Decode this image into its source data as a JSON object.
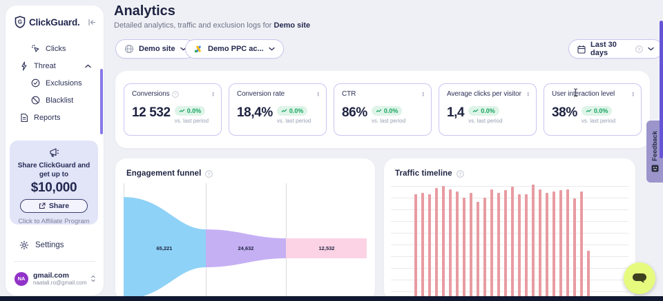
{
  "sidebar": {
    "logo_text": "ClickGuard.",
    "nav": [
      {
        "label": "Clicks"
      },
      {
        "label": "Threat"
      },
      {
        "label": "Exclusions"
      },
      {
        "label": "Blacklist"
      },
      {
        "label": "Reports"
      }
    ],
    "promo": {
      "text": "Share ClickGuard and get up to",
      "amount": "$10,000",
      "share_label": "Share",
      "footer": "Click to Affiliate Program"
    },
    "settings_label": "Settings",
    "account": {
      "initials": "NA",
      "name": "gmail.com",
      "email": "naatali.ro@gmail.com"
    }
  },
  "header": {
    "title": "Analytics",
    "subtitle": "Detailed analytics, traffic and exclusion logs for",
    "subtitle_target": "Demo site"
  },
  "filters": {
    "site": "Demo site",
    "ppc_account": "Demo PPC ac...",
    "date_range": "Last 30 days"
  },
  "kpis": [
    {
      "label": "Conversions",
      "value": "12 532",
      "change": "0.0%",
      "period": "vs. last period"
    },
    {
      "label": "Conversion rate",
      "value": "18,4%",
      "change": "0.0%",
      "period": "vs. last period"
    },
    {
      "label": "CTR",
      "value": "86%",
      "change": "0.0%",
      "period": "vs. last period"
    },
    {
      "label": "Average clicks per visitor",
      "value": "1,4",
      "change": "0.0%",
      "period": "vs. last period"
    },
    {
      "label": "User interaction level",
      "value": "38%",
      "change": "0.0%",
      "period": "vs. last period"
    }
  ],
  "engagement_funnel": {
    "title": "Engagement funnel",
    "chart_data": {
      "type": "funnel",
      "stages": [
        {
          "label": "65,221",
          "value": 65221,
          "color": "#8fd2f7"
        },
        {
          "label": "24,632",
          "value": 24632,
          "color": "#c6b0f4"
        },
        {
          "label": "12,532",
          "value": 12532,
          "color": "#fcd3e4"
        }
      ],
      "grid": "vertical separators between stages",
      "stage_names_visible": false
    }
  },
  "traffic_timeline": {
    "title": "Traffic timeline",
    "chart_data": {
      "type": "bar",
      "unit": "relative bar height, percent of plot (axis labels cut off in screenshot)",
      "values": [
        3,
        92,
        93,
        92,
        97,
        99,
        96,
        94,
        89,
        93,
        85,
        89,
        96,
        93,
        95,
        98,
        92,
        92,
        100,
        96,
        93,
        94,
        95,
        96,
        88,
        94,
        43
      ],
      "bar_color": "#e89ba1",
      "grid": "horizontal",
      "xlabels_visible": false,
      "ylabels_visible": false
    }
  },
  "feedback_label": "Feedback",
  "colors": {
    "accent_purple": "#6455d6",
    "border_purple": "#c9c4f0",
    "badge_green_bg": "#dff4e8",
    "badge_green_text": "#19a562",
    "promo_bg": "#e2e4f8",
    "funnel_blue": "#8fd2f7",
    "funnel_purple": "#c6b0f4",
    "funnel_pink": "#fcd3e4",
    "bars_pink": "#e89ba1",
    "feedback_tab": "#9b95cc",
    "chat_bubble": "#e6fa7e",
    "bottom_bar": "#101730"
  }
}
